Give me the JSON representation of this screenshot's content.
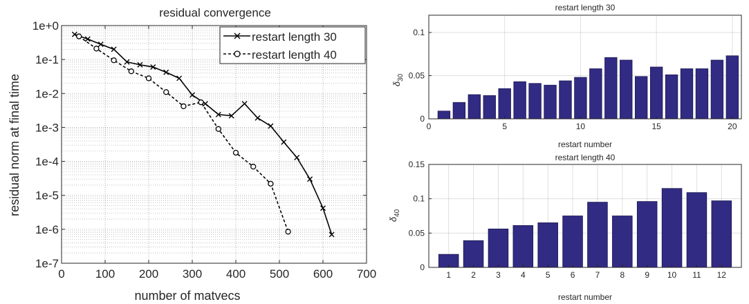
{
  "chart_data": [
    {
      "type": "line",
      "title": "residual convergence",
      "xlabel": "number of matvecs",
      "ylabel": "residual norm at final time",
      "xlim": [
        0,
        700
      ],
      "ylim": [
        1e-07,
        1
      ],
      "yscale": "log",
      "x_ticks": [
        0,
        100,
        200,
        300,
        400,
        500,
        600,
        700
      ],
      "x_tick_labels": [
        "0",
        "100",
        "200",
        "300",
        "400",
        "500",
        "600",
        "700"
      ],
      "y_ticks": [
        1,
        0.1,
        0.01,
        0.001,
        0.0001,
        1e-05,
        1e-06,
        1e-07
      ],
      "y_tick_labels": [
        "1e+0",
        "1e-1",
        "1e-2",
        "1e-3",
        "1e-4",
        "1e-5",
        "1e-6",
        "1e-7"
      ],
      "grid": true,
      "legend_position": "top-right",
      "series": [
        {
          "name": "restart length 30",
          "style": "solid",
          "marker": "x",
          "color": "#000000",
          "x": [
            30,
            60,
            90,
            120,
            150,
            180,
            210,
            240,
            270,
            300,
            330,
            360,
            390,
            420,
            450,
            480,
            510,
            540,
            570,
            600,
            620
          ],
          "y": [
            0.55,
            0.4,
            0.28,
            0.2,
            0.085,
            0.07,
            0.06,
            0.042,
            0.028,
            0.009,
            0.005,
            0.0024,
            0.0022,
            0.005,
            0.0019,
            0.0011,
            0.00037,
            0.00013,
            3e-05,
            4.2e-06,
            7e-07
          ]
        },
        {
          "name": "restart length 40",
          "style": "dashed",
          "marker": "o",
          "color": "#000000",
          "x": [
            40,
            80,
            120,
            160,
            200,
            240,
            280,
            320,
            360,
            400,
            440,
            480,
            520
          ],
          "y": [
            0.48,
            0.21,
            0.095,
            0.045,
            0.028,
            0.011,
            0.0042,
            0.0055,
            0.0009,
            0.00018,
            7e-05,
            2.2e-05,
            8.5e-07
          ]
        }
      ]
    },
    {
      "type": "bar",
      "title": "restart length 30",
      "xlabel": "restart number",
      "ylabel": "δ",
      "ylabel_subscript": "30",
      "color": "#322b83",
      "xlim": [
        0,
        20.6
      ],
      "ylim": [
        0,
        0.12
      ],
      "x_ticks": [
        0,
        5,
        10,
        15,
        20
      ],
      "x_tick_labels": [
        "0",
        "5",
        "10",
        "15",
        "20"
      ],
      "y_ticks": [
        0,
        0.05,
        0.1
      ],
      "y_tick_labels": [
        "0",
        "0.05",
        "0.1"
      ],
      "categories": [
        1,
        2,
        3,
        4,
        5,
        6,
        7,
        8,
        9,
        10,
        11,
        12,
        13,
        14,
        15,
        16,
        17,
        18,
        19,
        20
      ],
      "values": [
        0.009,
        0.019,
        0.028,
        0.027,
        0.035,
        0.043,
        0.041,
        0.039,
        0.044,
        0.048,
        0.058,
        0.071,
        0.068,
        0.049,
        0.06,
        0.051,
        0.058,
        0.058,
        0.068,
        0.073
      ]
    },
    {
      "type": "bar",
      "title": "restart length 40",
      "xlabel": "restart number",
      "ylabel": "δ",
      "ylabel_subscript": "40",
      "color": "#322b83",
      "xlim": [
        0.2,
        12.8
      ],
      "ylim": [
        0,
        0.15
      ],
      "x_ticks": [
        1,
        2,
        3,
        4,
        5,
        6,
        7,
        8,
        9,
        10,
        11,
        12
      ],
      "x_tick_labels": [
        "1",
        "2",
        "3",
        "4",
        "5",
        "6",
        "7",
        "8",
        "9",
        "10",
        "11",
        "12"
      ],
      "y_ticks": [
        0,
        0.05,
        0.1,
        0.15
      ],
      "y_tick_labels": [
        "0",
        "0.05",
        "0.1",
        "0.15"
      ],
      "categories": [
        1,
        2,
        3,
        4,
        5,
        6,
        7,
        8,
        9,
        10,
        11,
        12
      ],
      "values": [
        0.019,
        0.039,
        0.056,
        0.061,
        0.065,
        0.075,
        0.095,
        0.075,
        0.096,
        0.115,
        0.109,
        0.097
      ]
    }
  ]
}
